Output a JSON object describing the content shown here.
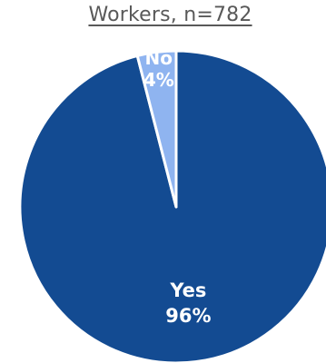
{
  "chart_data": {
    "type": "pie",
    "title": "Workers, n=782",
    "categories": [
      "Yes",
      "No"
    ],
    "values": [
      96,
      4
    ],
    "value_labels": [
      "96%",
      "4%"
    ],
    "colors": [
      "#134b92",
      "#8fb4f0"
    ],
    "slice_border_color": "#ffffff",
    "legend": "none"
  }
}
